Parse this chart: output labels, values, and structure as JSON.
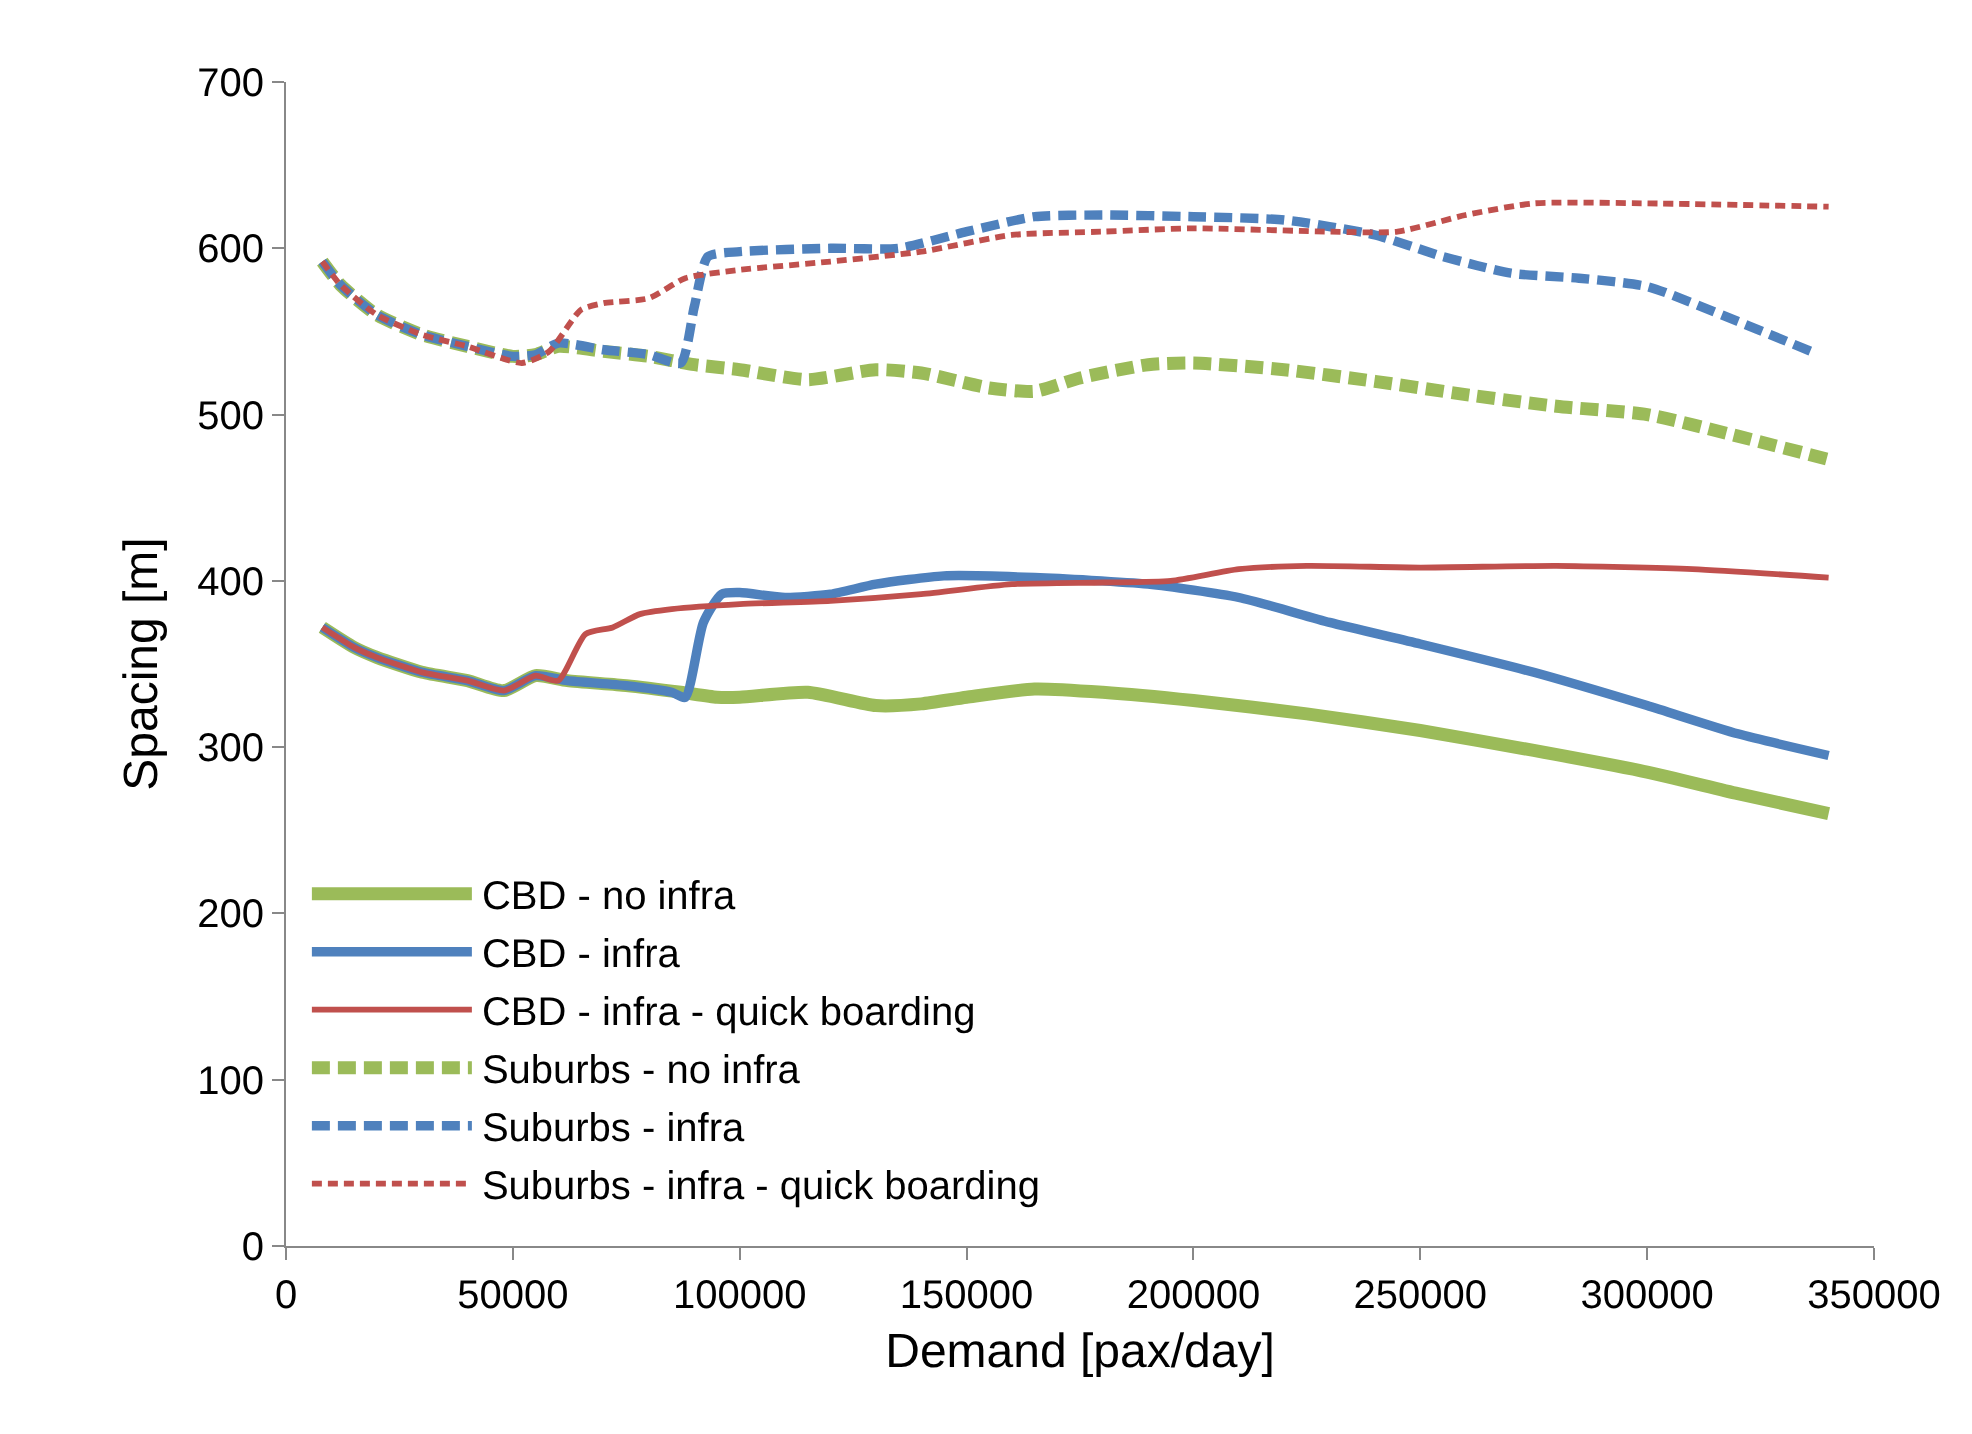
{
  "chart_data": {
    "type": "line",
    "xlabel": "Demand [pax/day]",
    "ylabel": "Spacing [m]",
    "xlim": [
      0,
      350000
    ],
    "xticks": [
      0,
      50000,
      100000,
      150000,
      200000,
      250000,
      300000,
      350000
    ],
    "ylim": [
      0,
      700
    ],
    "yticks": [
      0,
      100,
      200,
      300,
      400,
      500,
      600,
      700
    ],
    "grid": false,
    "legend": "bottom left",
    "marker": "none",
    "series": [
      {
        "name": "CBD - no infra",
        "color": "#9bbb59",
        "line_style": "solid",
        "x": [
          8000,
          15000,
          20000,
          30000,
          40000,
          48000,
          55000,
          62000,
          75000,
          87000,
          95000,
          100000,
          115000,
          130000,
          140000,
          150000,
          165000,
          180000,
          200000,
          225000,
          250000,
          275000,
          300000,
          320000,
          340000
        ],
        "values": [
          372,
          360,
          354,
          345,
          340,
          334,
          343,
          340,
          337,
          333,
          330,
          330,
          333,
          325,
          326,
          330,
          335,
          333,
          328,
          320,
          310,
          298,
          285,
          272,
          260
        ]
      },
      {
        "name": "CBD - infra",
        "color": "#4f81bd",
        "line_style": "solid",
        "x": [
          8000,
          15000,
          20000,
          30000,
          40000,
          48000,
          55000,
          62000,
          75000,
          85000,
          88000,
          92000,
          96000,
          100000,
          110000,
          120000,
          130000,
          145000,
          165000,
          190000,
          210000,
          230000,
          250000,
          275000,
          300000,
          320000,
          340000
        ],
        "values": [
          372,
          360,
          354,
          345,
          340,
          334,
          343,
          340,
          337,
          333,
          330,
          375,
          392,
          393,
          390,
          392,
          398,
          403,
          402,
          398,
          390,
          375,
          362,
          345,
          325,
          308,
          295
        ]
      },
      {
        "name": "CBD - infra - quick boarding",
        "color": "#c0504d",
        "line_style": "solid",
        "x": [
          8000,
          15000,
          20000,
          30000,
          40000,
          48000,
          55000,
          60000,
          66000,
          72000,
          78000,
          85000,
          100000,
          120000,
          140000,
          160000,
          180000,
          195000,
          210000,
          225000,
          250000,
          280000,
          310000,
          340000
        ],
        "values": [
          372,
          360,
          354,
          345,
          340,
          334,
          343,
          340,
          368,
          372,
          380,
          383,
          386,
          388,
          392,
          398,
          399,
          400,
          407,
          409,
          408,
          409,
          407,
          402
        ]
      },
      {
        "name": "Suburbs - no infra",
        "color": "#9bbb59",
        "line_style": "dashed",
        "x": [
          8000,
          12000,
          20000,
          30000,
          40000,
          50000,
          55000,
          60000,
          70000,
          80000,
          90000,
          100000,
          115000,
          130000,
          140000,
          155000,
          165000,
          175000,
          190000,
          200000,
          220000,
          240000,
          260000,
          280000,
          300000,
          320000,
          340000
        ],
        "values": [
          592,
          578,
          560,
          548,
          541,
          535,
          536,
          541,
          538,
          535,
          530,
          527,
          521,
          527,
          525,
          516,
          514,
          522,
          530,
          531,
          527,
          520,
          512,
          505,
          500,
          487,
          473
        ]
      },
      {
        "name": "Suburbs - infra",
        "color": "#4f81bd",
        "line_style": "dashed",
        "x": [
          8000,
          12000,
          20000,
          30000,
          40000,
          50000,
          55000,
          60000,
          70000,
          80000,
          87000,
          90000,
          93000,
          100000,
          120000,
          135000,
          150000,
          165000,
          180000,
          200000,
          220000,
          240000,
          255000,
          270000,
          285000,
          300000,
          320000,
          337000
        ],
        "values": [
          592,
          578,
          560,
          548,
          541,
          535,
          536,
          543,
          539,
          536,
          531,
          565,
          595,
          598,
          600,
          600,
          610,
          619,
          620,
          619,
          617,
          608,
          595,
          585,
          582,
          577,
          556,
          537
        ]
      },
      {
        "name": "Suburbs - infra - quick boarding",
        "color": "#c0504d",
        "line_style": "dotted",
        "x": [
          8000,
          12000,
          20000,
          30000,
          40000,
          52000,
          58000,
          65000,
          70000,
          80000,
          88000,
          100000,
          120000,
          140000,
          160000,
          180000,
          200000,
          230000,
          245000,
          260000,
          275000,
          300000,
          340000
        ],
        "values": [
          592,
          578,
          560,
          548,
          541,
          531,
          538,
          563,
          567,
          570,
          582,
          587,
          592,
          598,
          608,
          610,
          612,
          610,
          610,
          620,
          627,
          627,
          625
        ]
      }
    ]
  }
}
